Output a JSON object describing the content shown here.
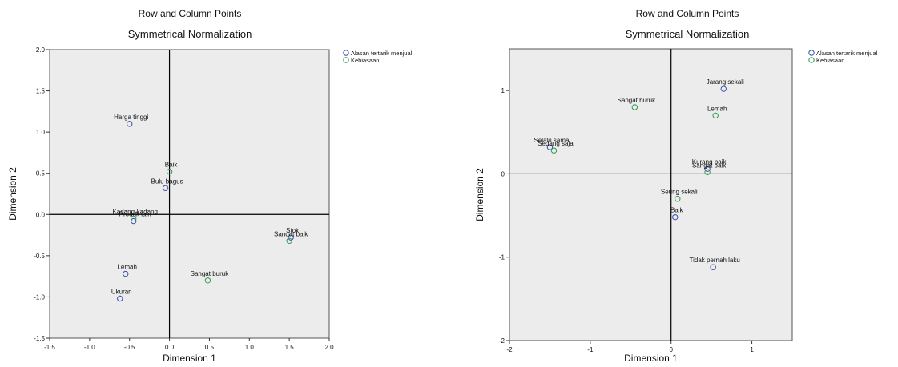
{
  "colors": {
    "row_point": "#3a4bb0",
    "col_point": "#2e9a4e",
    "plot_bg": "#ececec",
    "axis": "#000000"
  },
  "chart_data": [
    {
      "type": "scatter",
      "title": "Row and Column Points",
      "subtitle": "Symmetrical Normalization",
      "xlabel": "Dimension 1",
      "ylabel": "Dimension 2",
      "xlim": [
        -1.5,
        2.0
      ],
      "ylim": [
        -1.5,
        2.0
      ],
      "xticks": [
        "-1.5",
        "-1.0",
        "-0.5",
        "0.0",
        "0.5",
        "1.0",
        "1.5",
        "2.0"
      ],
      "yticks": [
        "2.0",
        "1.5",
        "1.0",
        "0.5",
        "0.0",
        "-0.5",
        "-1.0",
        "-1.5"
      ],
      "grid": false,
      "legend_position": "top-right",
      "series": [
        {
          "name": "Alasan tertarik menjual",
          "color_key": "row_point",
          "points": [
            {
              "label": "Harga tinggi",
              "x": -0.5,
              "y": 1.1
            },
            {
              "label": "Bulu bagus",
              "x": -0.05,
              "y": 0.32
            },
            {
              "label": "Produk lain",
              "x": -0.45,
              "y": -0.08
            },
            {
              "label": "Lemah",
              "x": -0.55,
              "y": -0.72
            },
            {
              "label": "Ukuran",
              "x": -0.62,
              "y": -1.02
            },
            {
              "label": "Stok",
              "x": 1.52,
              "y": -0.28
            }
          ]
        },
        {
          "name": "Kebiasaan",
          "color_key": "col_point",
          "points": [
            {
              "label": "Kadang-kadang",
              "x": -0.45,
              "y": -0.05
            },
            {
              "label": "Baik",
              "x": 0.0,
              "y": 0.52
            },
            {
              "label": "Sangat baik",
              "x": 1.5,
              "y": -0.32
            },
            {
              "label": "Sangat buruk",
              "x": 0.48,
              "y": -0.8
            }
          ]
        }
      ]
    },
    {
      "type": "scatter",
      "title": "Row and Column Points",
      "subtitle": "Symmetrical Normalization",
      "xlabel": "Dimension 1",
      "ylabel": "Dimension 2",
      "xlim": [
        -2,
        1.5
      ],
      "ylim": [
        -2,
        1.5
      ],
      "xticks": [
        "-2",
        "-1",
        "0",
        "1"
      ],
      "yticks": [
        "1",
        "0",
        "-1",
        "-2"
      ],
      "grid": false,
      "legend_position": "top-right",
      "series": [
        {
          "name": "Alasan tertarik menjual",
          "color_key": "row_point",
          "points": [
            {
              "label": "Jarang sekali",
              "x": 0.65,
              "y": 1.02
            },
            {
              "label": "Selalu sama",
              "x": -1.5,
              "y": 0.32
            },
            {
              "label": "Kurang baik",
              "x": 0.45,
              "y": 0.06
            },
            {
              "label": "Tidak pernah laku",
              "x": 0.52,
              "y": -1.12
            },
            {
              "label": "Baik",
              "x": 0.05,
              "y": -0.52
            }
          ]
        },
        {
          "name": "Kebiasaan",
          "color_key": "col_point",
          "points": [
            {
              "label": "Sangat buruk",
              "x": -0.45,
              "y": 0.8
            },
            {
              "label": "Lemah",
              "x": 0.55,
              "y": 0.7
            },
            {
              "label": "Sedang saja",
              "x": -1.45,
              "y": 0.28
            },
            {
              "label": "Sangat baik",
              "x": 0.45,
              "y": 0.02
            },
            {
              "label": "Sering sekali",
              "x": 0.08,
              "y": -0.3
            }
          ]
        }
      ]
    }
  ]
}
